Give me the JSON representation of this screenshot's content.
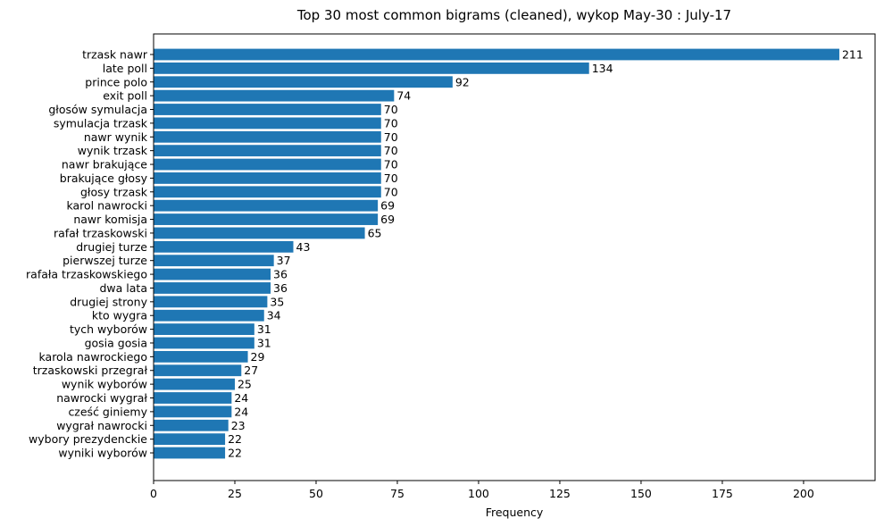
{
  "chart_data": {
    "type": "bar",
    "orientation": "horizontal",
    "title": "Top 30 most common bigrams (cleaned), wykop May-30 : July-17",
    "xlabel": "Frequency",
    "ylabel": "",
    "xlim": [
      0,
      222
    ],
    "xticks": [
      0,
      25,
      50,
      75,
      100,
      125,
      150,
      175,
      200
    ],
    "grid": false,
    "bar_color": "#1f77b4",
    "categories": [
      "trzask nawr",
      "late poll",
      "prince polo",
      "exit poll",
      "głosów symulacja",
      "symulacja trzask",
      "nawr wynik",
      "wynik trzask",
      "nawr brakujące",
      "brakujące głosy",
      "głosy trzask",
      "karol nawrocki",
      "nawr komisja",
      "rafał trzaskowski",
      "drugiej turze",
      "pierwszej turze",
      "rafała trzaskowskiego",
      "dwa lata",
      "drugiej strony",
      "kto wygra",
      "tych wyborów",
      "gosia gosia",
      "karola nawrockiego",
      "trzaskowski przegrał",
      "wynik wyborów",
      "nawrocki wygrał",
      "cześć giniemy",
      "wygrał nawrocki",
      "wybory prezydenckie",
      "wyniki wyborów"
    ],
    "values": [
      211,
      134,
      92,
      74,
      70,
      70,
      70,
      70,
      70,
      70,
      70,
      69,
      69,
      65,
      43,
      37,
      36,
      36,
      35,
      34,
      31,
      31,
      29,
      27,
      25,
      24,
      24,
      23,
      22,
      22
    ]
  }
}
